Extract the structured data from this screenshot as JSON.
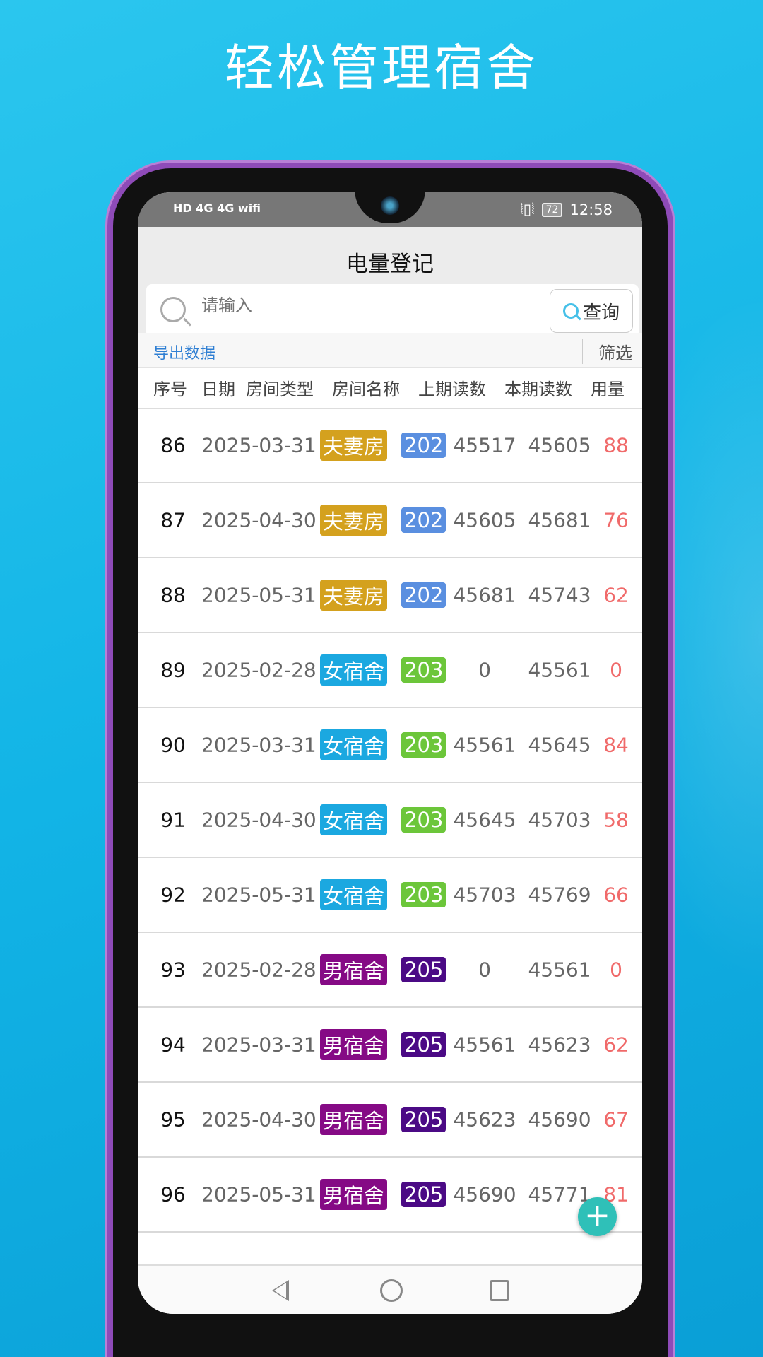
{
  "headline": "轻松管理宿舍",
  "status_bar": {
    "left": "HD 4G 4G wifi",
    "battery": "72",
    "time": "12:58"
  },
  "app": {
    "title": "电量登记"
  },
  "search": {
    "placeholder": "请输入",
    "button_label": "查询"
  },
  "toolbar": {
    "export_label": "导出数据",
    "filter_label": "筛选"
  },
  "table": {
    "headers": [
      "序号",
      "日期",
      "房间类型",
      "房间名称",
      "上期读数",
      "本期读数",
      "用量"
    ],
    "rows": [
      {
        "no": "86",
        "date": "2025-03-31",
        "type": "夫妻房",
        "room": "202",
        "prev": "45517",
        "cur": "45605",
        "use": "88"
      },
      {
        "no": "87",
        "date": "2025-04-30",
        "type": "夫妻房",
        "room": "202",
        "prev": "45605",
        "cur": "45681",
        "use": "76"
      },
      {
        "no": "88",
        "date": "2025-05-31",
        "type": "夫妻房",
        "room": "202",
        "prev": "45681",
        "cur": "45743",
        "use": "62"
      },
      {
        "no": "89",
        "date": "2025-02-28",
        "type": "女宿舍",
        "room": "203",
        "prev": "0",
        "cur": "45561",
        "use": "0"
      },
      {
        "no": "90",
        "date": "2025-03-31",
        "type": "女宿舍",
        "room": "203",
        "prev": "45561",
        "cur": "45645",
        "use": "84"
      },
      {
        "no": "91",
        "date": "2025-04-30",
        "type": "女宿舍",
        "room": "203",
        "prev": "45645",
        "cur": "45703",
        "use": "58"
      },
      {
        "no": "92",
        "date": "2025-05-31",
        "type": "女宿舍",
        "room": "203",
        "prev": "45703",
        "cur": "45769",
        "use": "66"
      },
      {
        "no": "93",
        "date": "2025-02-28",
        "type": "男宿舍",
        "room": "205",
        "prev": "0",
        "cur": "45561",
        "use": "0"
      },
      {
        "no": "94",
        "date": "2025-03-31",
        "type": "男宿舍",
        "room": "205",
        "prev": "45561",
        "cur": "45623",
        "use": "62"
      },
      {
        "no": "95",
        "date": "2025-04-30",
        "type": "男宿舍",
        "room": "205",
        "prev": "45623",
        "cur": "45690",
        "use": "67"
      },
      {
        "no": "96",
        "date": "2025-05-31",
        "type": "男宿舍",
        "room": "205",
        "prev": "45690",
        "cur": "45771",
        "use": "81"
      }
    ]
  },
  "colors": {
    "type": {
      "夫妻房": "#d4a11e",
      "女宿舍": "#1ba8e0",
      "男宿舍": "#850a85"
    },
    "room": {
      "202": "#5a8fe0",
      "203": "#6cc63a",
      "205": "#4b0a85"
    }
  },
  "fab": {
    "icon": "plus-icon"
  }
}
